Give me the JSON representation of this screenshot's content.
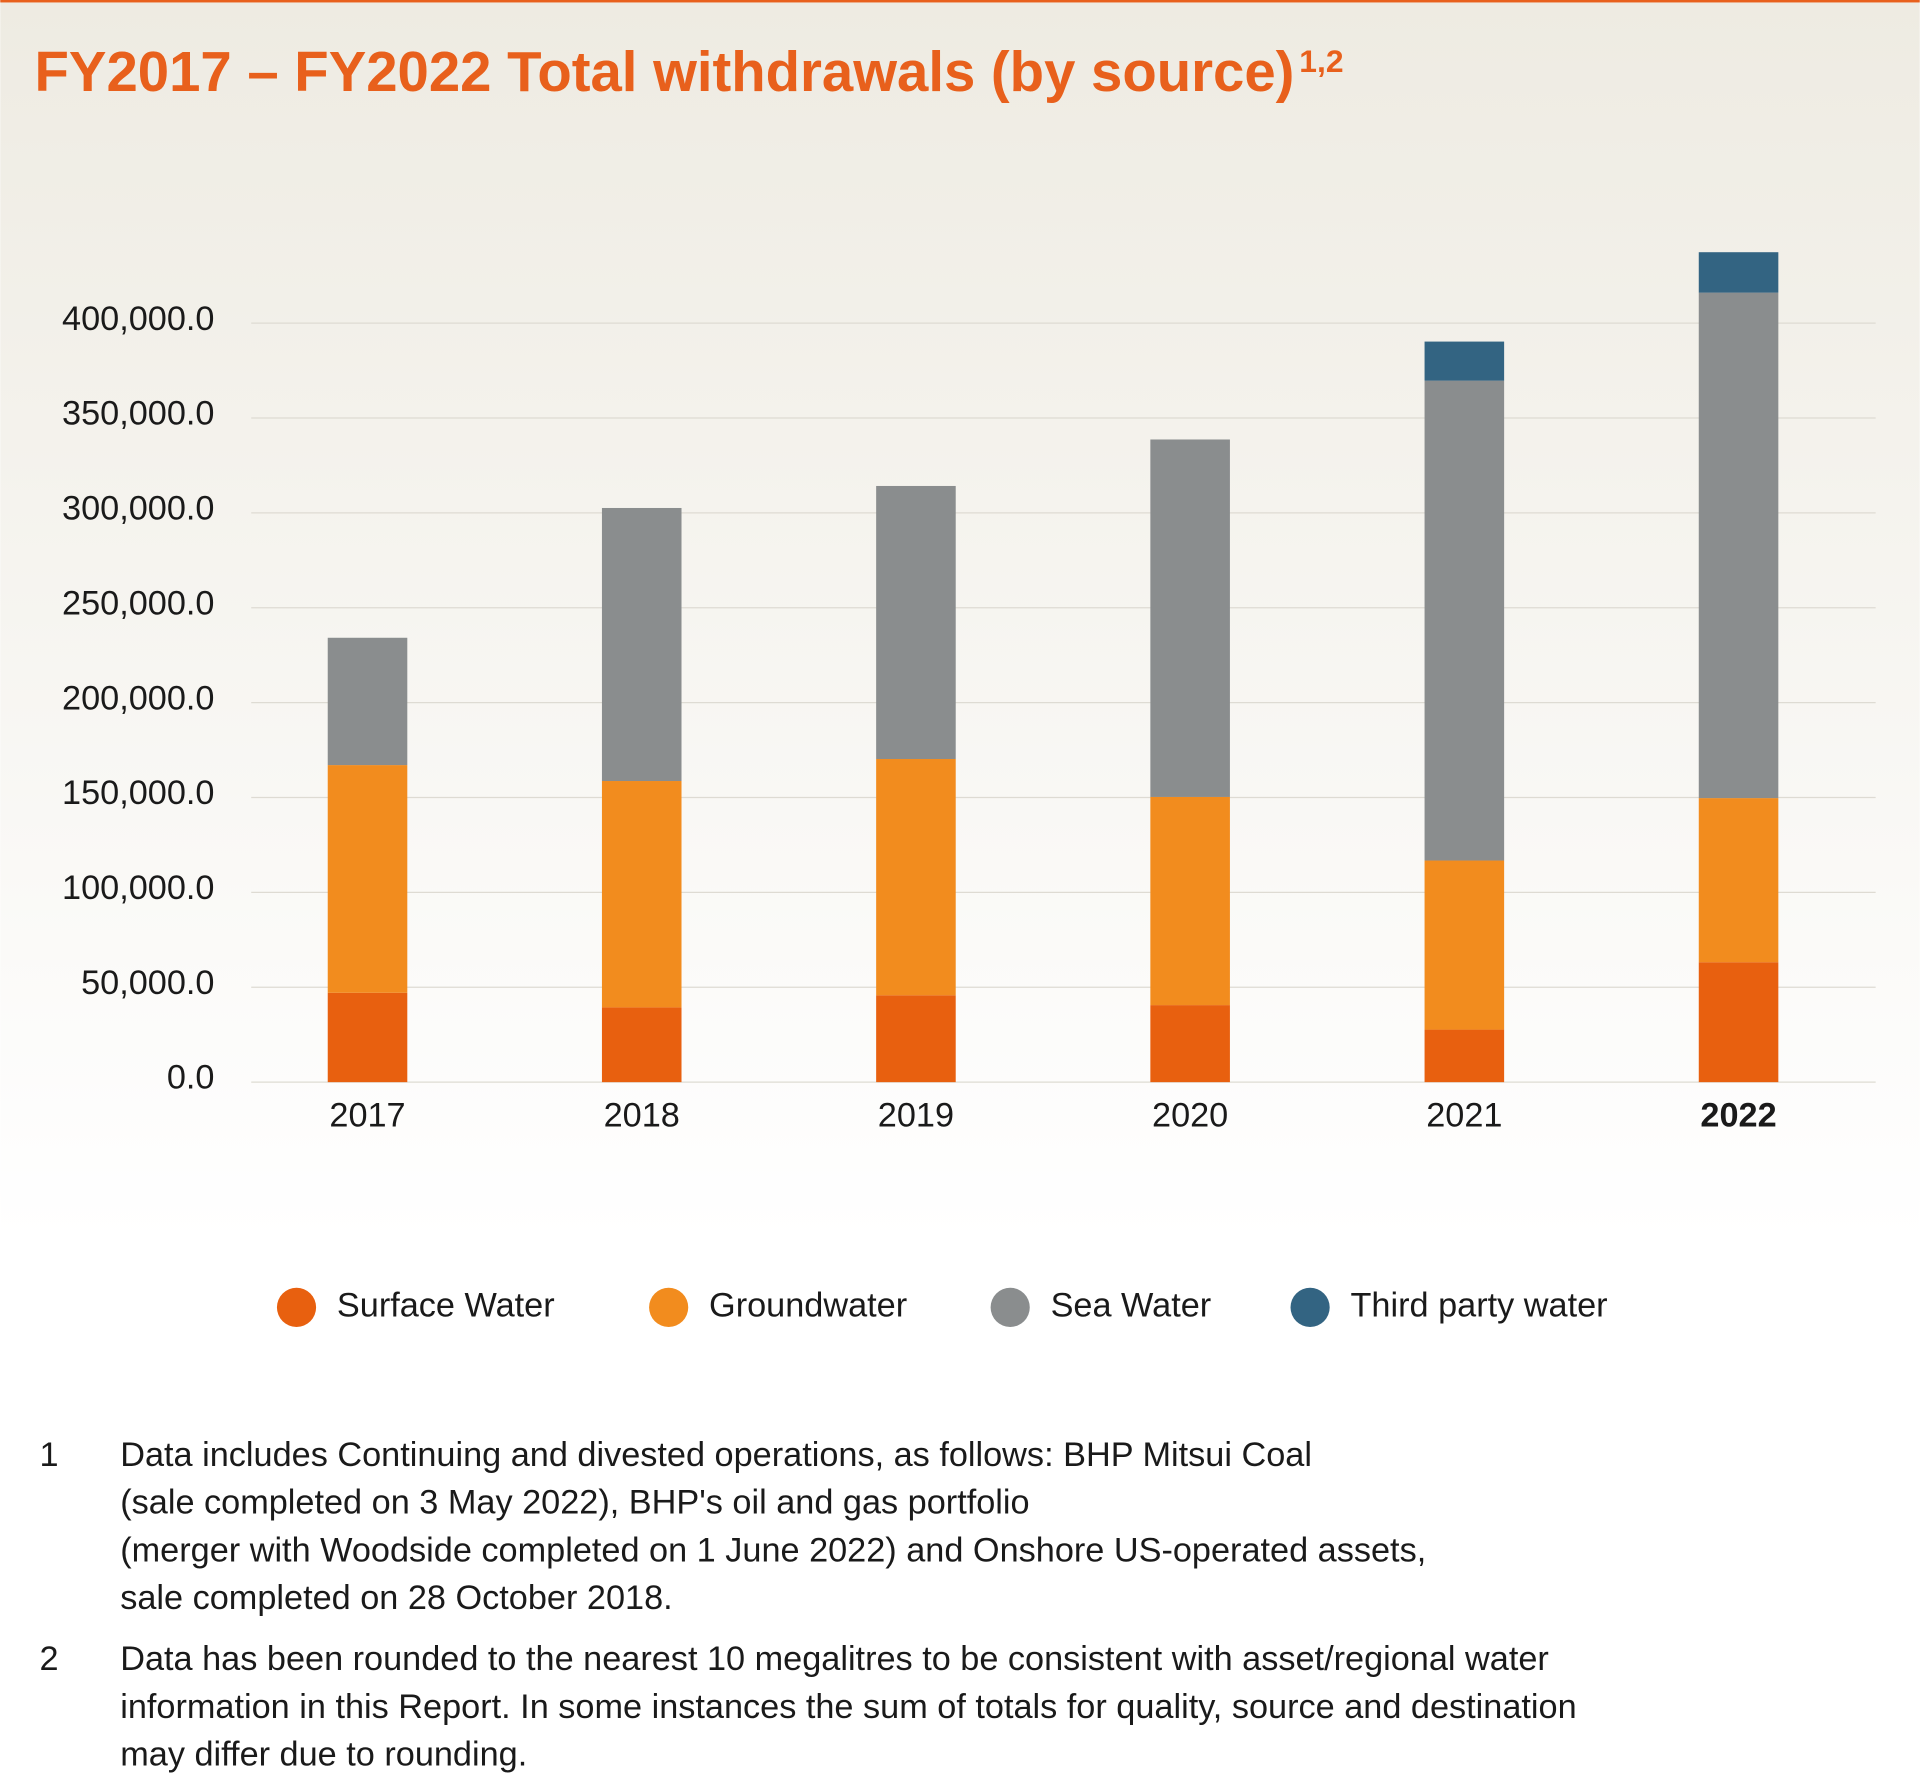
{
  "chart_data": {
    "type": "stacked_bar",
    "title": "FY2017 – FY2022 Total withdrawals (by source)",
    "title_superscript": "1,2",
    "categories": [
      "2017",
      "2018",
      "2019",
      "2020",
      "2021",
      "2022"
    ],
    "bold_last_category": true,
    "series": [
      {
        "name": "Surface Water",
        "color": "#e8600f",
        "values": [
          47100,
          39400,
          45800,
          40600,
          27700,
          63200
        ]
      },
      {
        "name": "Groundwater",
        "color": "#f28c1e",
        "values": [
          120000,
          119300,
          124500,
          109700,
          89100,
          86500
        ]
      },
      {
        "name": "Sea Water",
        "color": "#8a8d8e",
        "values": [
          67100,
          143900,
          143900,
          188400,
          252900,
          266400
        ]
      },
      {
        "name": "Third party water",
        "color": "#336482",
        "values": [
          0,
          0,
          0,
          0,
          20600,
          21300
        ]
      }
    ],
    "ylim": [
      0,
      450000
    ],
    "yticks": [
      {
        "value": 0,
        "label": "0.0"
      },
      {
        "value": 50000,
        "label": "50,000.0"
      },
      {
        "value": 100000,
        "label": "100,000.0"
      },
      {
        "value": 150000,
        "label": "150,000.0"
      },
      {
        "value": 200000,
        "label": "200,000.0"
      },
      {
        "value": 250000,
        "label": "250,000.0"
      },
      {
        "value": 300000,
        "label": "300,000.0"
      },
      {
        "value": 350000,
        "label": "350,000.0"
      },
      {
        "value": 400000,
        "label": "400,000.0"
      }
    ],
    "grid": true,
    "legend": "bottom"
  },
  "footnotes": [
    {
      "number": "1",
      "lines": [
        "Data includes Continuing and divested operations, as follows: BHP Mitsui Coal",
        "(sale completed on 3 May 2022), BHP's oil and gas portfolio",
        "(merger with Woodside completed on 1 June 2022) and Onshore US-operated assets,",
        "sale completed on 28 October 2018."
      ]
    },
    {
      "number": "2",
      "lines": [
        "Data has been rounded to the nearest 10 megalitres to be consistent with asset/regional water",
        "information in this Report. In some instances the sum of totals for quality, source and destination",
        "may differ due to rounding."
      ]
    }
  ]
}
